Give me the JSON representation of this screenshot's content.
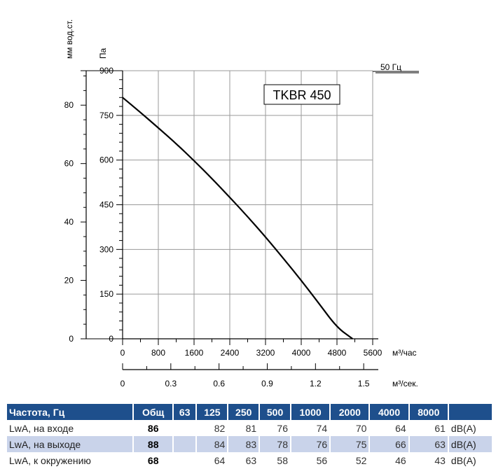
{
  "chart_data": {
    "type": "line",
    "title": "TKBR 450",
    "frequency_label": "50 Гц",
    "y_left_unit": "мм вод.ст.",
    "y_right_unit": "Па",
    "x_unit": "м³/час",
    "x2_unit": "м³/сек.",
    "ylim_pa": [
      0,
      900
    ],
    "ylim_mm": [
      0,
      91.8
    ],
    "xlim": [
      0,
      5600
    ],
    "x2lim": [
      0,
      1.556
    ],
    "y_ticks_pa": [
      "0",
      "150",
      "300",
      "450",
      "600",
      "750",
      "900"
    ],
    "y_ticks_mm": [
      "0",
      "20",
      "40",
      "60",
      "80"
    ],
    "x_ticks": [
      "0",
      "800",
      "1600",
      "2400",
      "3200",
      "4000",
      "4800",
      "5600"
    ],
    "x2_ticks": [
      "0",
      "0.3",
      "0.6",
      "0.9",
      "1.2",
      "1.5"
    ],
    "grid": true,
    "series": [
      {
        "name": "TKBR 450",
        "x": [
          0,
          400,
          800,
          1200,
          1600,
          2000,
          2400,
          2800,
          3200,
          3600,
          4000,
          4400,
          4800,
          5150
        ],
        "y": [
          810,
          760,
          708,
          655,
          598,
          538,
          475,
          410,
          342,
          270,
          196,
          118,
          38,
          0
        ]
      }
    ]
  },
  "noise_table": {
    "headers": [
      "Частота, Гц",
      "Общ",
      "63",
      "125",
      "250",
      "500",
      "1000",
      "2000",
      "4000",
      "8000",
      ""
    ],
    "rows": [
      {
        "label": "LwA, на входе",
        "total": "86",
        "values": [
          "",
          "82",
          "81",
          "76",
          "74",
          "70",
          "64",
          "61"
        ],
        "unit": "dB(A)"
      },
      {
        "label": "LwA, на выходе",
        "total": "88",
        "values": [
          "",
          "84",
          "83",
          "78",
          "76",
          "75",
          "66",
          "63"
        ],
        "unit": "dB(A)"
      },
      {
        "label": "LwA, к окружению",
        "total": "68",
        "values": [
          "",
          "64",
          "63",
          "58",
          "56",
          "52",
          "46",
          "43"
        ],
        "unit": "dB(A)"
      }
    ]
  }
}
